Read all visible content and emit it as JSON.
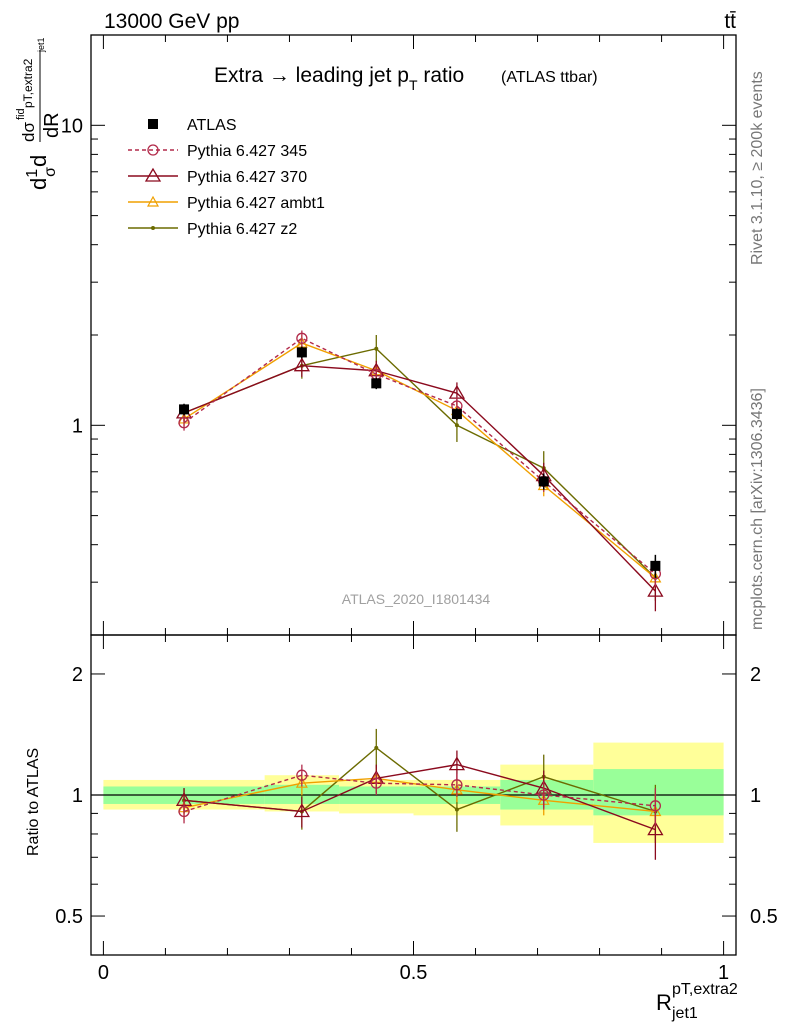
{
  "header": {
    "left": "13000 GeV pp",
    "right": "tt̄"
  },
  "side_labels": {
    "rivet": "Rivet 3.1.10, ≥ 200k events",
    "mcplots": "mcplots.cern.ch [arXiv:1306.3436]"
  },
  "chart_data": [
    {
      "type": "line",
      "title": "Extra → leading jet pT ratio (ATLAS ttbar)",
      "title_main": "Extra → leading jet p",
      "title_sub": "T",
      "title_after": " ratio",
      "title_paren": "(ATLAS ttbar)",
      "ylabel": "1/σ dσ^fid / dR^{pT,extra2}_{jet1}",
      "y_scale": "log",
      "ylim": [
        0.2,
        20
      ],
      "xlim": [
        -0.02,
        1.02
      ],
      "y_tick_labels": [
        "1",
        "10"
      ],
      "watermark": "ATLAS_2020_I1801434",
      "legend_position": "top-left",
      "bin_edges": [
        0.0,
        0.26,
        0.38,
        0.5,
        0.64,
        0.79,
        1.0
      ],
      "x": [
        0.13,
        0.32,
        0.44,
        0.57,
        0.71,
        0.89
      ],
      "series": [
        {
          "name": "ATLAS",
          "color": "#000000",
          "marker": "square",
          "values": [
            1.13,
            1.75,
            1.38,
            1.09,
            0.65,
            0.34
          ],
          "errors": [
            0.05,
            0.08,
            0.06,
            0.05,
            0.04,
            0.03
          ]
        },
        {
          "name": "Pythia 6.427 345",
          "color": "#b22a4a",
          "marker": "circle-open",
          "dash": "4,3",
          "values": [
            1.02,
            1.95,
            1.48,
            1.16,
            0.65,
            0.32
          ],
          "errors": [
            0.06,
            0.12,
            0.1,
            0.08,
            0.05,
            0.03
          ]
        },
        {
          "name": "Pythia 6.427 370",
          "color": "#8b0a1e",
          "marker": "triangle-open",
          "values": [
            1.1,
            1.58,
            1.52,
            1.28,
            0.68,
            0.28
          ],
          "errors": [
            0.07,
            0.13,
            0.12,
            0.11,
            0.07,
            0.04
          ]
        },
        {
          "name": "Pythia 6.427 ambt1",
          "color": "#f0a000",
          "marker": "triangle-open-small",
          "values": [
            1.05,
            1.88,
            1.52,
            1.12,
            0.63,
            0.31
          ],
          "errors": [
            0.06,
            0.12,
            0.1,
            0.08,
            0.05,
            0.03
          ]
        },
        {
          "name": "Pythia 6.427 z2",
          "color": "#6b6b00",
          "marker": "dot",
          "values": [
            1.1,
            1.58,
            1.8,
            1.0,
            0.72,
            0.31
          ],
          "errors": [
            0.07,
            0.15,
            0.2,
            0.12,
            0.1,
            0.05
          ]
        }
      ]
    },
    {
      "type": "line",
      "title": "",
      "ylabel": "Ratio to ATLAS",
      "xlabel": "R^{pT,extra2}_{jet1}",
      "xlabel_main": "R",
      "xlabel_sup": "pT,extra2",
      "xlabel_sub": "jet1",
      "y_scale": "log",
      "ylim": [
        0.4,
        2.5
      ],
      "xlim": [
        -0.02,
        1.02
      ],
      "x_tick_labels": [
        "0",
        "0.5",
        "1"
      ],
      "y_tick_labels": [
        "0.5",
        "1",
        "2"
      ],
      "bin_edges": [
        0.0,
        0.26,
        0.38,
        0.5,
        0.64,
        0.79,
        1.0
      ],
      "band_inner": [
        [
          0.95,
          1.05
        ],
        [
          0.95,
          1.06
        ],
        [
          0.95,
          1.05
        ],
        [
          0.95,
          1.05
        ],
        [
          0.92,
          1.09
        ],
        [
          0.89,
          1.16
        ]
      ],
      "band_outer": [
        [
          0.92,
          1.09
        ],
        [
          0.91,
          1.12
        ],
        [
          0.9,
          1.09
        ],
        [
          0.89,
          1.09
        ],
        [
          0.84,
          1.19
        ],
        [
          0.76,
          1.35
        ]
      ],
      "x": [
        0.13,
        0.32,
        0.44,
        0.57,
        0.71,
        0.89
      ],
      "series": [
        {
          "name": "Pythia 6.427 345",
          "color": "#b22a4a",
          "marker": "circle-open",
          "dash": "4,3",
          "values": [
            0.91,
            1.12,
            1.07,
            1.06,
            1.0,
            0.94
          ],
          "errors": [
            0.06,
            0.07,
            0.07,
            0.07,
            0.08,
            0.1
          ]
        },
        {
          "name": "Pythia 6.427 370",
          "color": "#8b0a1e",
          "marker": "triangle-open",
          "values": [
            0.97,
            0.91,
            1.1,
            1.19,
            1.04,
            0.82
          ],
          "errors": [
            0.07,
            0.08,
            0.09,
            0.1,
            0.11,
            0.13
          ]
        },
        {
          "name": "Pythia 6.427 ambt1",
          "color": "#f0a000",
          "marker": "triangle-open-small",
          "values": [
            0.93,
            1.07,
            1.1,
            1.03,
            0.97,
            0.91
          ],
          "errors": [
            0.06,
            0.07,
            0.07,
            0.07,
            0.08,
            0.1
          ]
        },
        {
          "name": "Pythia 6.427 z2",
          "color": "#6b6b00",
          "marker": "dot",
          "values": [
            0.97,
            0.91,
            1.31,
            0.92,
            1.11,
            0.91
          ],
          "errors": [
            0.07,
            0.09,
            0.15,
            0.11,
            0.15,
            0.15
          ]
        }
      ]
    }
  ]
}
